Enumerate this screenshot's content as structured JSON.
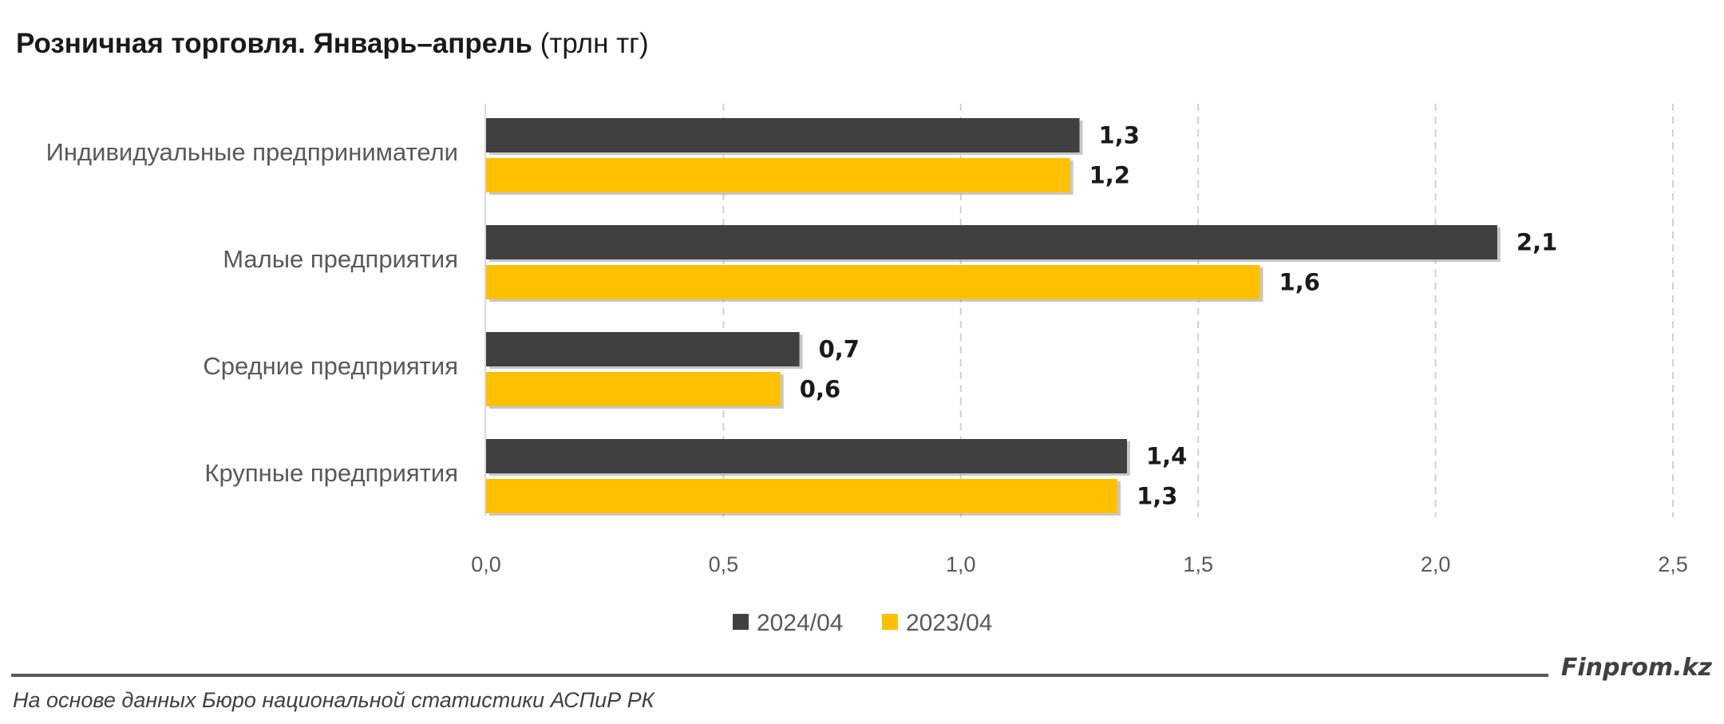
{
  "title": {
    "bold": "Розничная торговля. Январь–апрель",
    "unit": " (трлн тг)"
  },
  "chart_data": {
    "type": "bar",
    "orientation": "horizontal",
    "categories": [
      "Индивидуальные предприниматели",
      "Малые предприятия",
      "Средние предприятия",
      "Крупные предприятия"
    ],
    "series": [
      {
        "name": "2024/04",
        "color": "#404040",
        "values": [
          1.25,
          2.13,
          0.66,
          1.35
        ],
        "labels": [
          "1,3",
          "2,1",
          "0,7",
          "1,4"
        ]
      },
      {
        "name": "2023/04",
        "color": "#FFC000",
        "values": [
          1.23,
          1.63,
          0.62,
          1.33
        ],
        "labels": [
          "1,2",
          "1,6",
          "0,6",
          "1,3"
        ]
      }
    ],
    "xlim": [
      0,
      2.5
    ],
    "xticks": [
      0,
      0.5,
      1.0,
      1.5,
      2.0,
      2.5
    ],
    "xtick_labels": [
      "0,0",
      "0,5",
      "1,0",
      "1,5",
      "2,0",
      "2,5"
    ],
    "grid": "vertical-dashed",
    "legend_position": "bottom"
  },
  "footer": {
    "brand": "Finprom.kz",
    "source": "На основе данных Бюро национальной статистики АСПиР РК"
  }
}
